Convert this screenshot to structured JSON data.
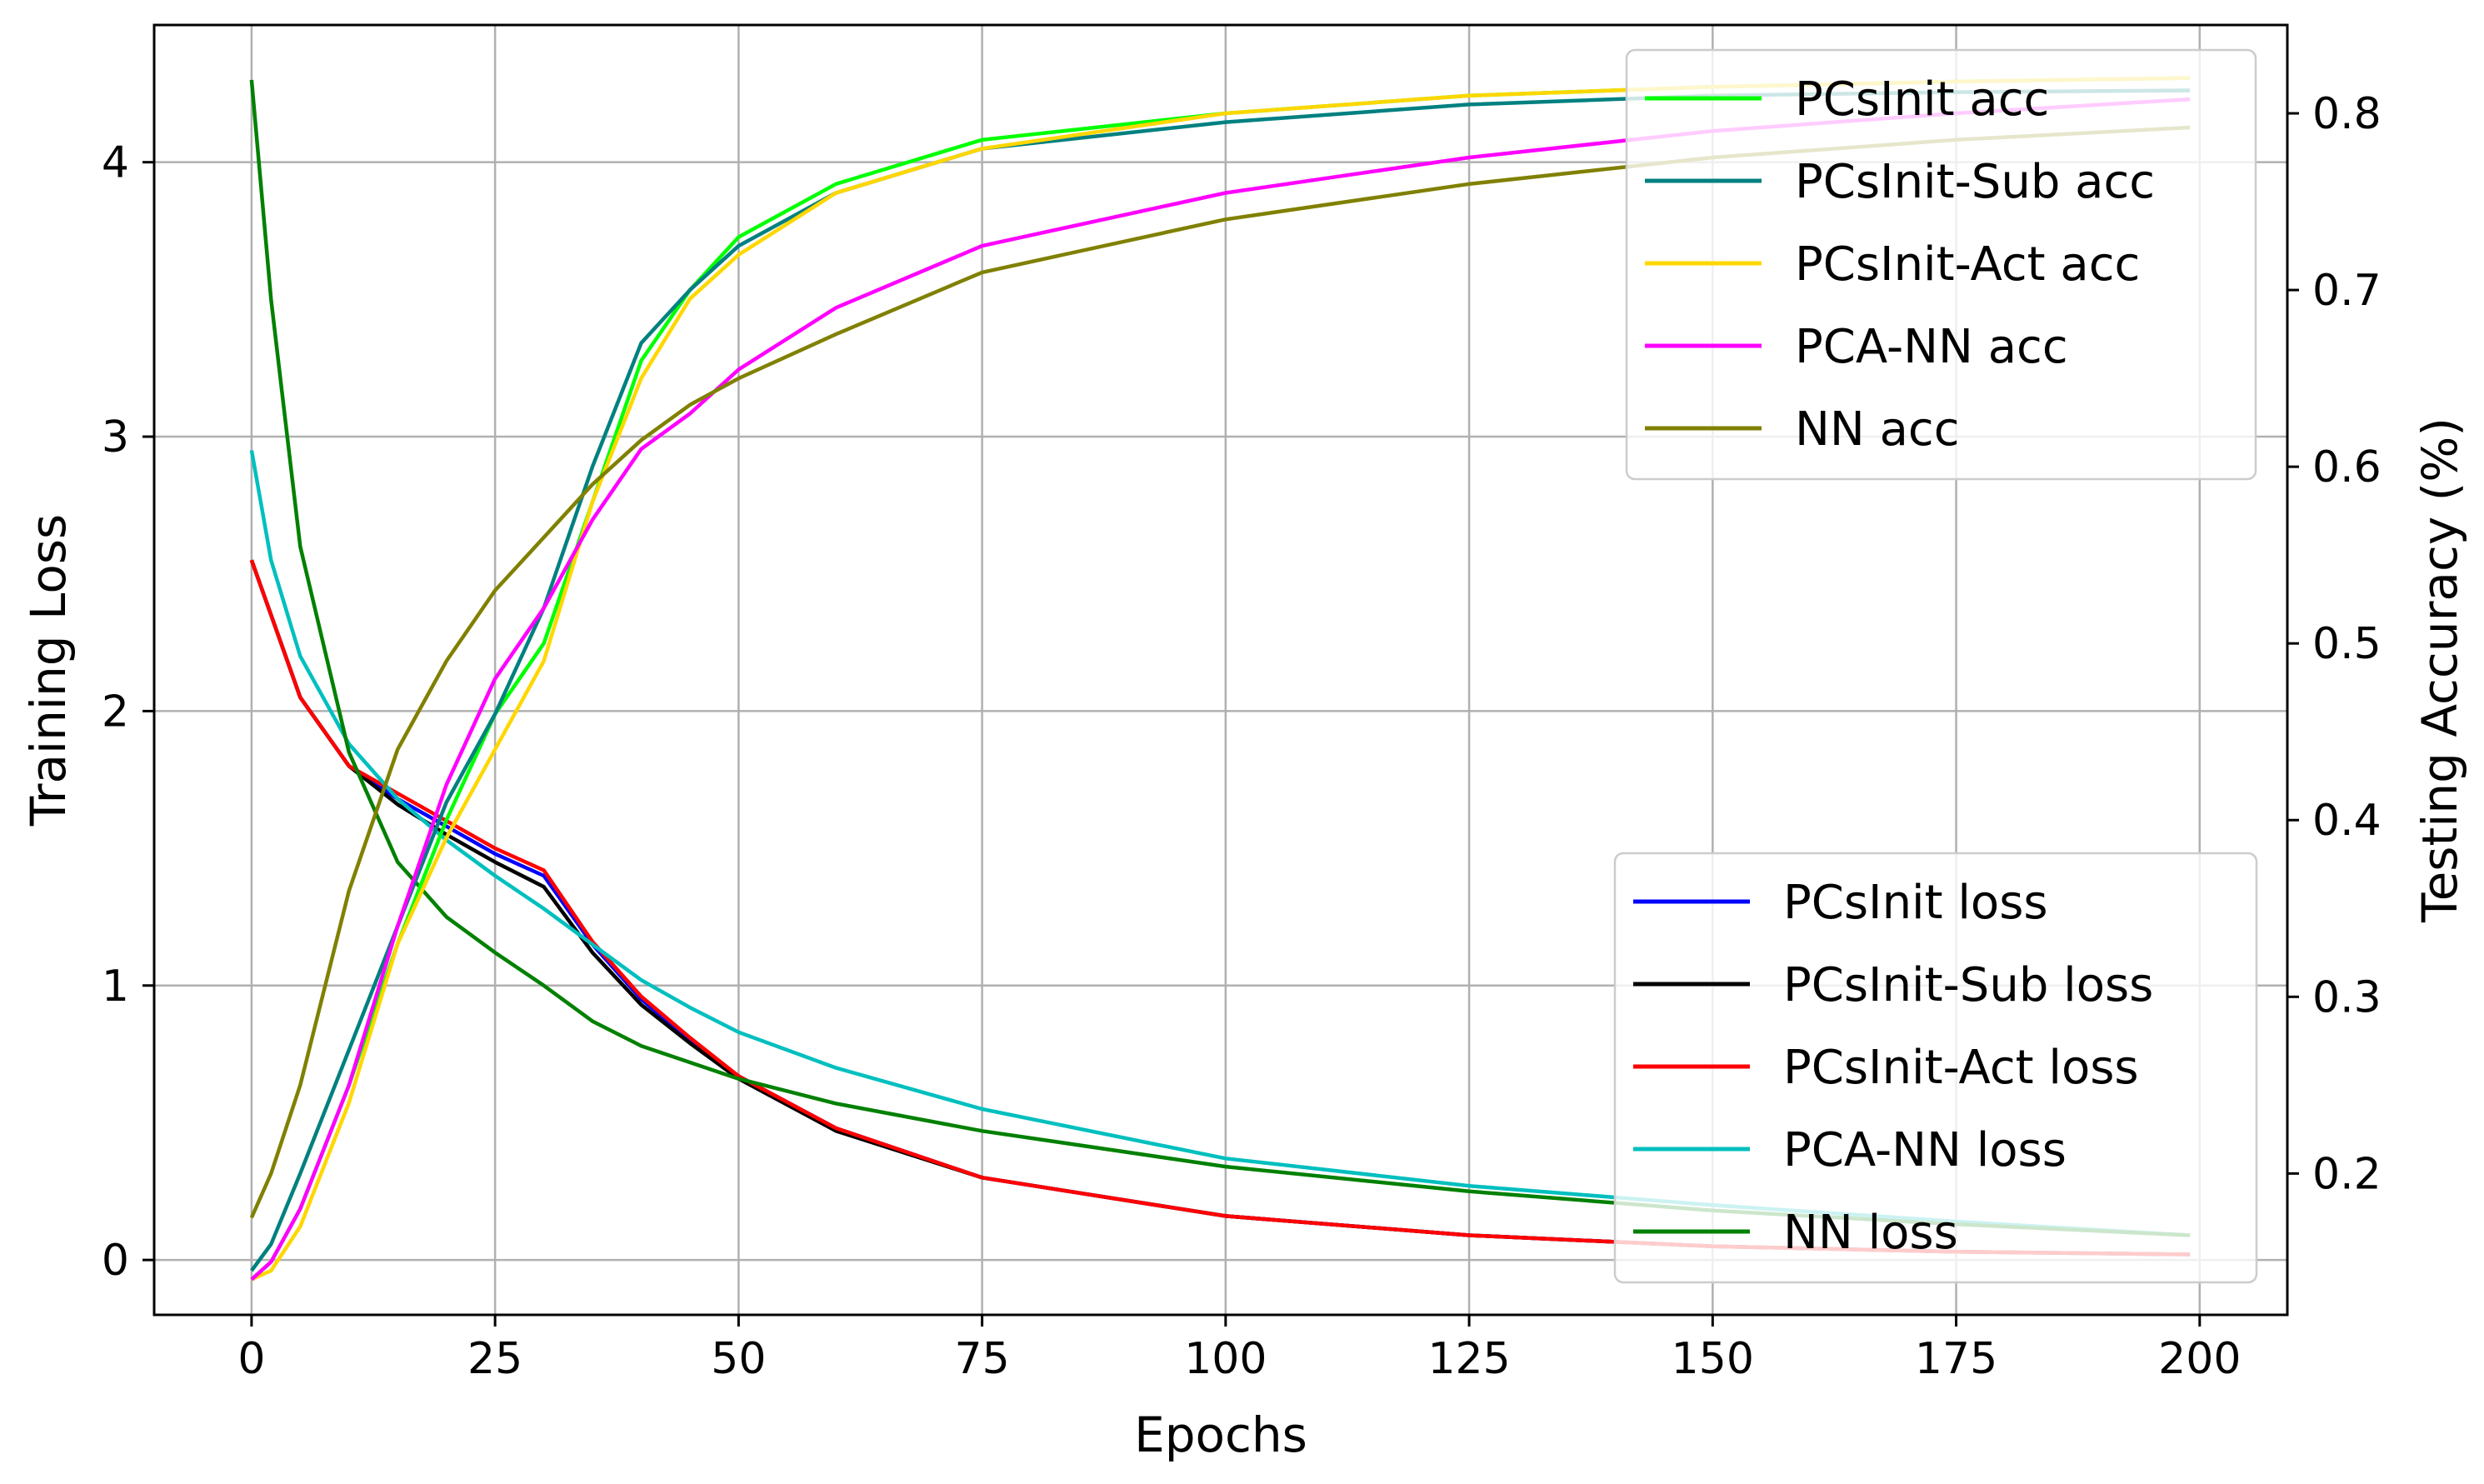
{
  "chart_data": {
    "type": "line",
    "xlabel": "Epochs",
    "ylabel_left": "Training Loss",
    "ylabel_right": "Testing Accuracy (%)",
    "xlim": [
      -10,
      209
    ],
    "ylim_left": [
      -0.2,
      4.5
    ],
    "ylim_right": [
      0.12,
      0.85
    ],
    "x_ticks": [
      0,
      25,
      50,
      75,
      100,
      125,
      150,
      175,
      200
    ],
    "y_left_ticks": [
      0,
      1,
      2,
      3,
      4
    ],
    "y_right_ticks": [
      0.2,
      0.3,
      0.4,
      0.5,
      0.6,
      0.7,
      0.8
    ],
    "grid": true,
    "legend_acc_position": "upper-right",
    "legend_loss_position": "lower-right",
    "x_samples": [
      0,
      2,
      5,
      10,
      15,
      20,
      25,
      30,
      35,
      40,
      45,
      50,
      60,
      75,
      100,
      125,
      150,
      175,
      199
    ],
    "acc_series": [
      {
        "name": "PCsInit acc",
        "color": "#00ff00",
        "values": [
          0.14,
          0.15,
          0.18,
          0.25,
          0.33,
          0.4,
          0.46,
          0.5,
          0.58,
          0.66,
          0.7,
          0.73,
          0.76,
          0.785,
          0.8,
          0.81,
          0.815,
          0.818,
          0.82
        ]
      },
      {
        "name": "PCsInit-Sub acc",
        "color": "#008080",
        "values": [
          0.145,
          0.16,
          0.2,
          0.27,
          0.34,
          0.41,
          0.46,
          0.52,
          0.6,
          0.67,
          0.7,
          0.725,
          0.755,
          0.78,
          0.795,
          0.805,
          0.81,
          0.812,
          0.813
        ]
      },
      {
        "name": "PCsInit-Act acc",
        "color": "#ffd700",
        "values": [
          0.14,
          0.145,
          0.17,
          0.24,
          0.33,
          0.39,
          0.44,
          0.49,
          0.58,
          0.65,
          0.695,
          0.72,
          0.755,
          0.78,
          0.8,
          0.81,
          0.815,
          0.818,
          0.82
        ]
      },
      {
        "name": "PCA-NN acc",
        "color": "#ff00ff",
        "values": [
          0.14,
          0.15,
          0.18,
          0.25,
          0.34,
          0.42,
          0.48,
          0.52,
          0.57,
          0.61,
          0.63,
          0.655,
          0.69,
          0.725,
          0.755,
          0.775,
          0.79,
          0.8,
          0.808
        ]
      },
      {
        "name": "NN acc",
        "color": "#808000",
        "values": [
          0.175,
          0.2,
          0.25,
          0.36,
          0.44,
          0.49,
          0.53,
          0.56,
          0.59,
          0.615,
          0.635,
          0.65,
          0.675,
          0.71,
          0.74,
          0.76,
          0.775,
          0.785,
          0.792
        ]
      }
    ],
    "loss_series": [
      {
        "name": "PCsInit loss",
        "color": "#0000ff",
        "values": [
          2.55,
          2.35,
          2.05,
          1.8,
          1.68,
          1.58,
          1.48,
          1.4,
          1.15,
          0.95,
          0.8,
          0.67,
          0.48,
          0.3,
          0.16,
          0.09,
          0.05,
          0.03,
          0.02
        ]
      },
      {
        "name": "PCsInit-Sub loss",
        "color": "#000000",
        "values": [
          2.55,
          2.35,
          2.05,
          1.8,
          1.66,
          1.55,
          1.45,
          1.36,
          1.12,
          0.93,
          0.79,
          0.66,
          0.47,
          0.3,
          0.16,
          0.09,
          0.05,
          0.03,
          0.02
        ]
      },
      {
        "name": "PCsInit-Act loss",
        "color": "#ff0000",
        "values": [
          2.55,
          2.35,
          2.05,
          1.8,
          1.7,
          1.6,
          1.5,
          1.42,
          1.16,
          0.96,
          0.81,
          0.67,
          0.48,
          0.3,
          0.16,
          0.09,
          0.05,
          0.03,
          0.02
        ]
      },
      {
        "name": "PCA-NN loss",
        "color": "#00bfbf",
        "values": [
          2.95,
          2.55,
          2.2,
          1.88,
          1.68,
          1.53,
          1.4,
          1.28,
          1.15,
          1.02,
          0.92,
          0.83,
          0.7,
          0.55,
          0.37,
          0.27,
          0.2,
          0.14,
          0.09
        ]
      },
      {
        "name": "NN loss",
        "color": "#008000",
        "values": [
          4.3,
          3.5,
          2.6,
          1.85,
          1.45,
          1.25,
          1.12,
          1.0,
          0.87,
          0.78,
          0.72,
          0.66,
          0.57,
          0.47,
          0.34,
          0.25,
          0.18,
          0.13,
          0.09
        ]
      }
    ]
  }
}
